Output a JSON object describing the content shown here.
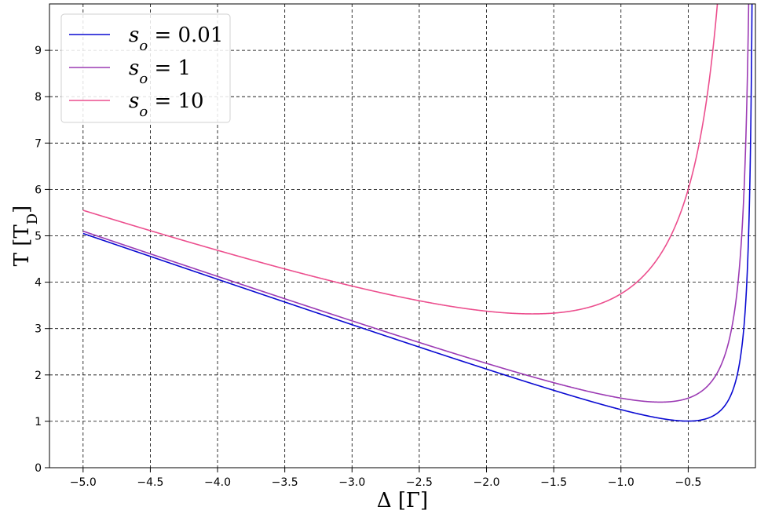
{
  "chart_data": {
    "type": "line",
    "title": "",
    "xlabel": "Δ [Γ]",
    "ylabel": "T [T_D]",
    "xlim": [
      -5.25,
      0.0
    ],
    "ylim": [
      0,
      10
    ],
    "x_ticks": [
      -5.0,
      -4.5,
      -4.0,
      -3.5,
      -3.0,
      -2.5,
      -2.0,
      -1.5,
      -1.0,
      -0.5
    ],
    "x_tick_labels": [
      "−5.0",
      "−4.5",
      "−4.0",
      "−3.5",
      "−3.0",
      "−2.5",
      "−2.0",
      "−1.5",
      "−1.0",
      "−0.5"
    ],
    "y_ticks": [
      0,
      1,
      2,
      3,
      4,
      5,
      6,
      7,
      8,
      9
    ],
    "y_tick_labels": [
      "0",
      "1",
      "2",
      "3",
      "4",
      "5",
      "6",
      "7",
      "8",
      "9"
    ],
    "grid": true,
    "grid_style": "dashed",
    "legend_position": "top-left",
    "series": [
      {
        "name": "s_o = 0.01",
        "legend_base": "s",
        "legend_sub": "o",
        "legend_rest": " = 0.01",
        "color": "#0a0ad2",
        "s0": 0.01
      },
      {
        "name": "s_o = 1",
        "legend_base": "s",
        "legend_sub": "o",
        "legend_rest": " = 1",
        "color": "#9c3bb4",
        "s0": 1
      },
      {
        "name": "s_o = 10",
        "legend_base": "s",
        "legend_sub": "o",
        "legend_rest": " = 10",
        "color": "#ec4f8e",
        "s0": 10
      }
    ]
  },
  "labels": {
    "xlabel_main": "Δ [Γ]",
    "ylabel_main": "T [T",
    "ylabel_sub": "D",
    "ylabel_close": "]"
  }
}
